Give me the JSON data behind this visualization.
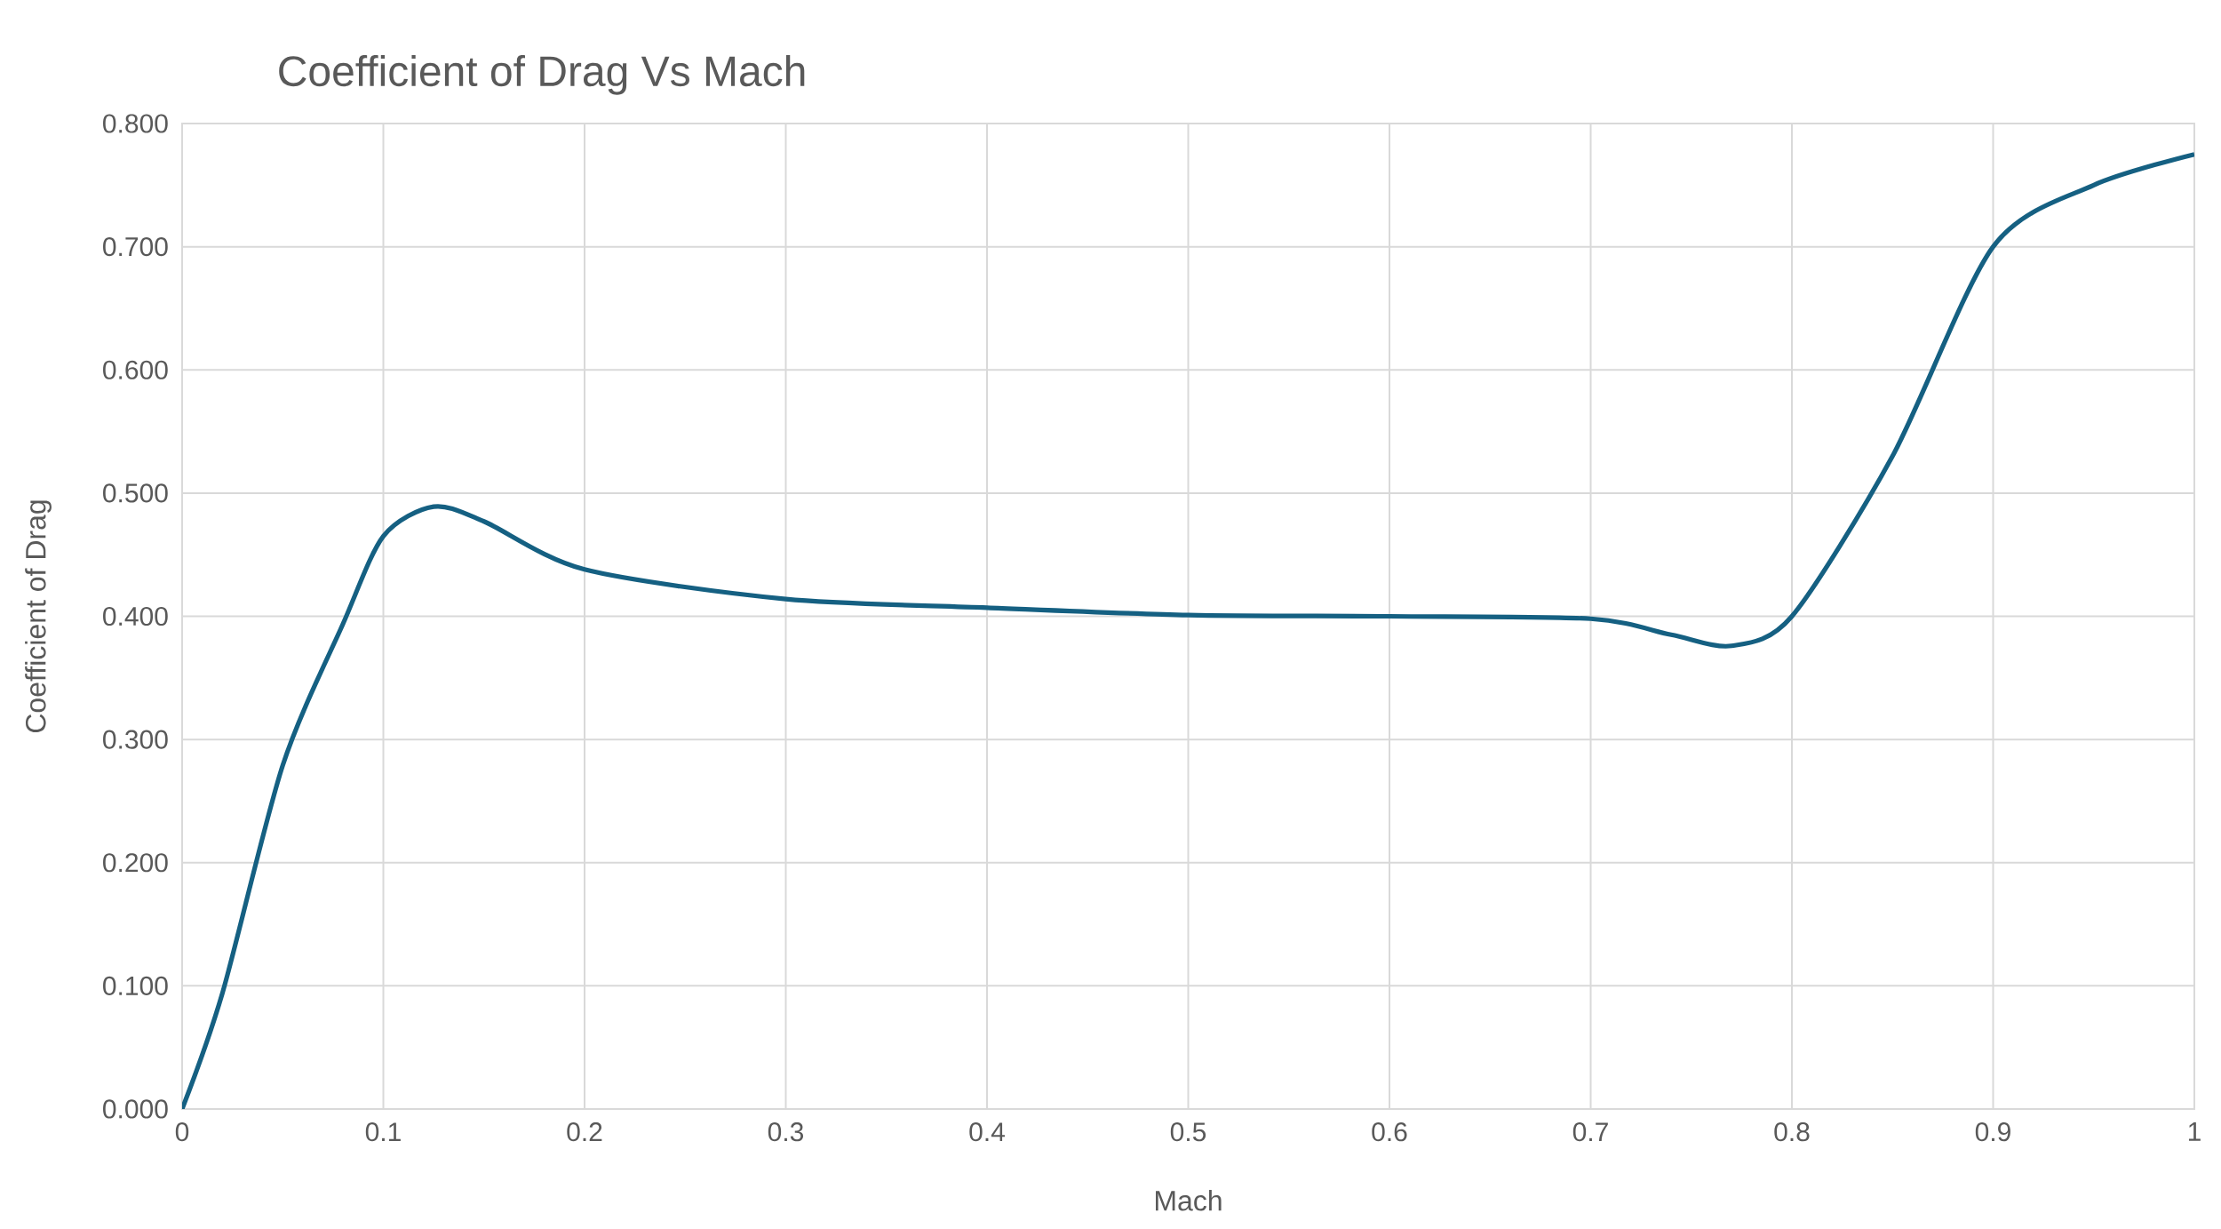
{
  "chart_data": {
    "type": "line",
    "title": "Coefficient of Drag Vs Mach",
    "xlabel": "Mach",
    "ylabel": "Coefficient of Drag",
    "x": [
      0,
      0.02,
      0.05,
      0.08,
      0.1,
      0.125,
      0.15,
      0.2,
      0.3,
      0.4,
      0.5,
      0.6,
      0.7,
      0.74,
      0.77,
      0.8,
      0.85,
      0.9,
      0.95,
      1.0
    ],
    "series": [
      {
        "color": "#156082",
        "values": [
          0,
          0.094,
          0.279,
          0.394,
          0.465,
          0.489,
          0.477,
          0.438,
          0.414,
          0.407,
          0.401,
          0.4,
          0.398,
          0.385,
          0.376,
          0.4,
          0.53,
          0.7,
          0.75,
          0.775
        ]
      }
    ],
    "xlim": [
      0,
      1
    ],
    "ylim": [
      0,
      0.8
    ],
    "xticks": [
      0,
      0.1,
      0.2,
      0.3,
      0.4,
      0.5,
      0.6,
      0.7,
      0.8,
      0.9,
      1
    ],
    "yticks": [
      {
        "value": 0,
        "label": "0.000"
      },
      {
        "value": 0.1,
        "label": "0.100"
      },
      {
        "value": 0.2,
        "label": "0.200"
      },
      {
        "value": 0.3,
        "label": "0.300"
      },
      {
        "value": 0.4,
        "label": "0.400"
      },
      {
        "value": 0.5,
        "label": "0.500"
      },
      {
        "value": 0.6,
        "label": "0.600"
      },
      {
        "value": 0.7,
        "label": "0.700"
      },
      {
        "value": 0.8,
        "label": "0.800"
      }
    ],
    "grid": true,
    "marker": "none",
    "line_style": "solid"
  }
}
